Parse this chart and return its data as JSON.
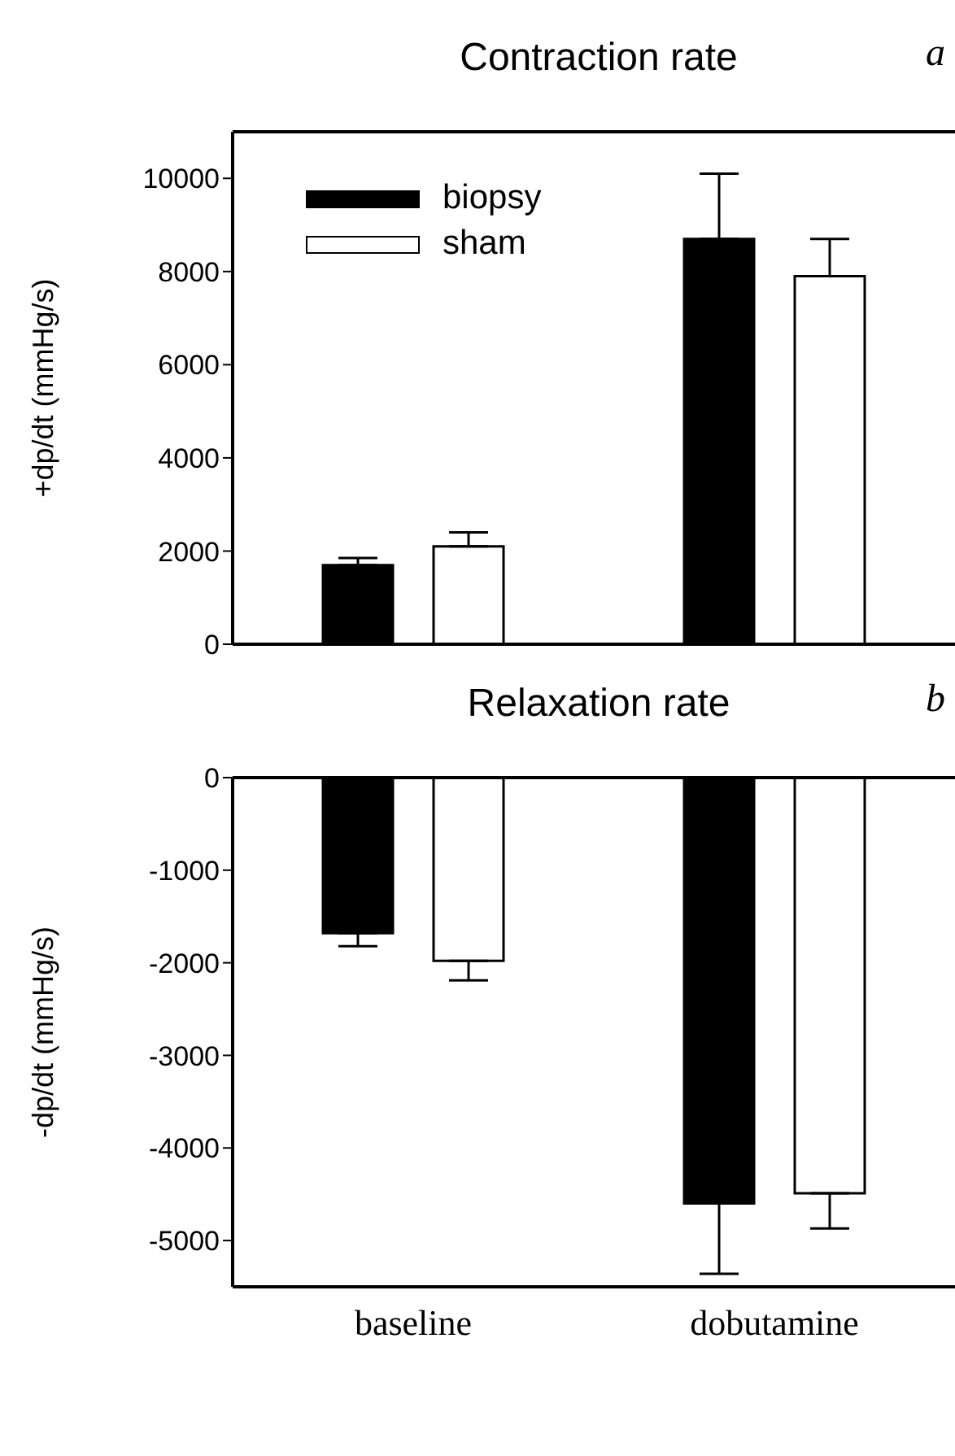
{
  "chart_data": [
    {
      "type": "bar",
      "title": "Contraction rate",
      "ylabel": "+dp/dt (mmHg/s)",
      "annotations": [
        "a"
      ],
      "categories": [
        null,
        null
      ],
      "series": [
        {
          "name": "biopsy",
          "color": "#000000",
          "values": [
            1700,
            8700
          ],
          "errors": [
            150,
            1400
          ]
        },
        {
          "name": "sham",
          "color": "#ffffff",
          "values": [
            2100,
            7900
          ],
          "errors": [
            300,
            800
          ]
        }
      ],
      "ylim": [
        0,
        11000
      ],
      "yticks": [
        0,
        2000,
        4000,
        6000,
        8000,
        10000
      ],
      "legend": "top left",
      "tick_labels": "y",
      "grid": false
    },
    {
      "type": "bar",
      "title": "Relaxation rate",
      "ylabel": "-dp/dt (mmHg/s)",
      "annotations": [
        "b"
      ],
      "categories": [
        "baseline",
        "dobutamine"
      ],
      "series": [
        {
          "color": "#000000",
          "values": [
            -1680,
            -4600
          ],
          "errors": [
            140,
            760
          ]
        },
        {
          "color": "#ffffff",
          "values": [
            -1980,
            -4490
          ],
          "errors": [
            210,
            380
          ]
        }
      ],
      "ylim": [
        -5500,
        0
      ],
      "yticks": [
        0,
        -1000,
        -2000,
        -3000,
        -4000,
        -5000
      ],
      "legend": false,
      "grid": false
    }
  ]
}
